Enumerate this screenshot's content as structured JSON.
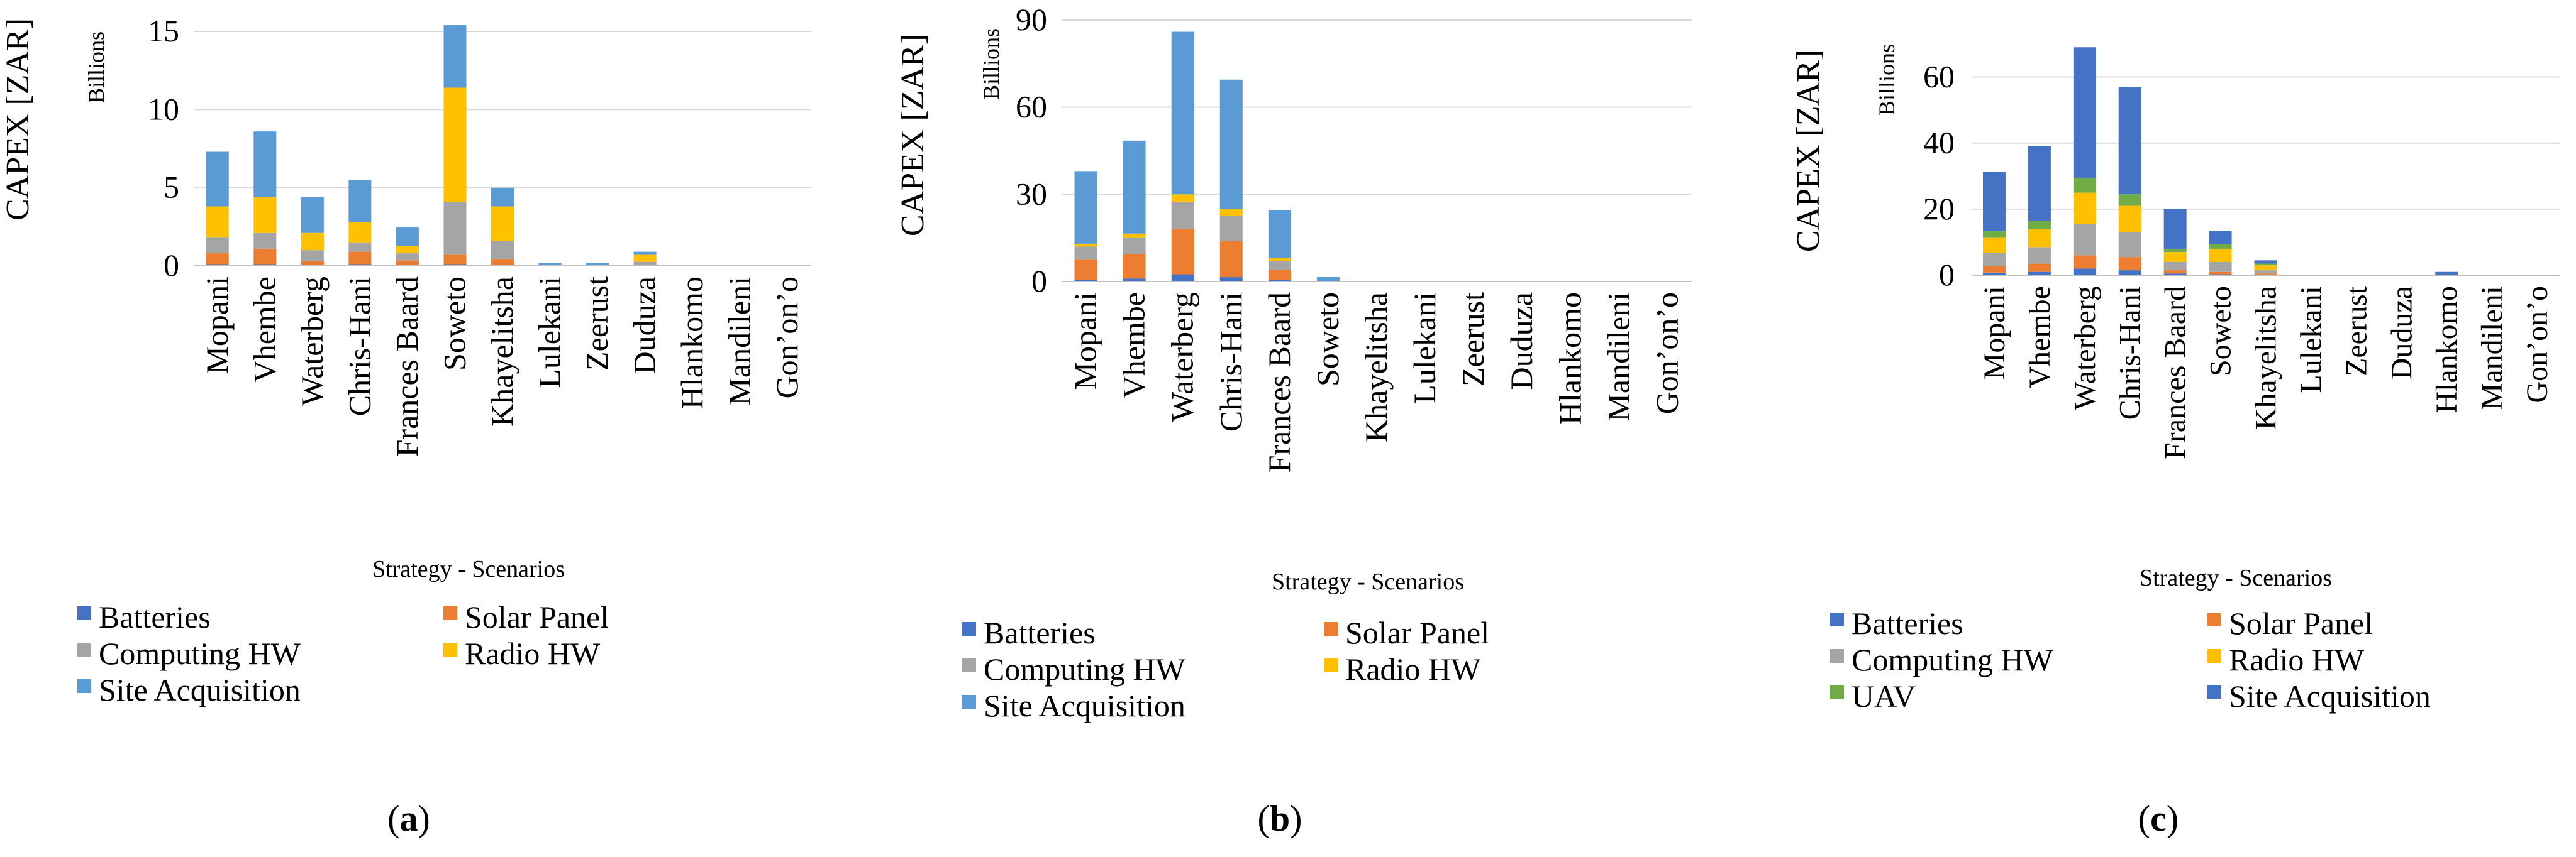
{
  "figure": {
    "panel_labels": [
      "(a)",
      "(b)",
      "(c)"
    ]
  },
  "chart_data": [
    {
      "type": "bar",
      "stacked": true,
      "panel": "(a)",
      "title": "",
      "xlabel": "Strategy - Scenarios",
      "ylabel": "CAPEX [ZAR]",
      "yunit": "Billions",
      "ylim": [
        0,
        15
      ],
      "yticks": [
        0,
        5,
        10,
        15
      ],
      "grid": true,
      "legend_position": "bottom",
      "categories": [
        "Mopani",
        "Vhembe",
        "Waterberg",
        "Chris-Hani",
        "Frances Baard",
        "Soweto",
        "Khayelitsha",
        "Lulekani",
        "Zeerust",
        "Duduza",
        "Hlankomo",
        "Mandileni",
        "Gon’on’o"
      ],
      "series": [
        {
          "name": "Batteries",
          "color": "#4472C4",
          "values": [
            0.1,
            0.1,
            0.05,
            0.1,
            0.05,
            0.1,
            0.05,
            0,
            0,
            0,
            0,
            0,
            0
          ]
        },
        {
          "name": "Solar Panel",
          "color": "#ED7D31",
          "values": [
            0.7,
            1.0,
            0.25,
            0.8,
            0.3,
            0.6,
            0.35,
            0,
            0,
            0.05,
            0,
            0,
            0
          ]
        },
        {
          "name": "Computing HW",
          "color": "#A5A5A5",
          "values": [
            1.0,
            1.0,
            0.7,
            0.6,
            0.45,
            3.4,
            1.2,
            0,
            0,
            0.2,
            0,
            0,
            0
          ]
        },
        {
          "name": "Radio HW",
          "color": "#FFC000",
          "values": [
            2.0,
            2.3,
            1.1,
            1.3,
            0.45,
            7.3,
            2.2,
            0,
            0,
            0.45,
            0,
            0,
            0
          ]
        },
        {
          "name": "Site Acquisition",
          "color": "#5B9BD5",
          "values": [
            3.5,
            4.2,
            2.3,
            2.7,
            1.2,
            4.0,
            1.2,
            0.2,
            0.2,
            0.2,
            0,
            0,
            0
          ]
        }
      ]
    },
    {
      "type": "bar",
      "stacked": true,
      "panel": "(b)",
      "title": "",
      "xlabel": "Strategy - Scenarios",
      "ylabel": "CAPEX [ZAR]",
      "yunit": "Billions",
      "ylim": [
        0,
        90
      ],
      "yticks": [
        0,
        30,
        60,
        90
      ],
      "grid": true,
      "legend_position": "bottom",
      "categories": [
        "Mopani",
        "Vhembe",
        "Waterberg",
        "Chris-Hani",
        "Frances Baard",
        "Soweto",
        "Khayelitsha",
        "Lulekani",
        "Zeerust",
        "Duduza",
        "Hlankomo",
        "Mandileni",
        "Gon’on’o"
      ],
      "series": [
        {
          "name": "Batteries",
          "color": "#4472C4",
          "values": [
            0.5,
            1.0,
            2.5,
            1.5,
            0.5,
            0,
            0,
            0,
            0,
            0,
            0,
            0,
            0
          ]
        },
        {
          "name": "Solar Panel",
          "color": "#ED7D31",
          "values": [
            7.0,
            8.5,
            15.5,
            12.5,
            3.5,
            0,
            0,
            0,
            0,
            0,
            0,
            0,
            0
          ]
        },
        {
          "name": "Computing HW",
          "color": "#A5A5A5",
          "values": [
            4.5,
            5.5,
            9.5,
            8.5,
            3.0,
            0,
            0,
            0,
            0,
            0,
            0,
            0,
            0
          ]
        },
        {
          "name": "Radio HW",
          "color": "#FFC000",
          "values": [
            1.0,
            1.5,
            2.5,
            2.5,
            1.0,
            0,
            0,
            0,
            0,
            0,
            0,
            0,
            0
          ]
        },
        {
          "name": "Site Acquisition",
          "color": "#5B9BD5",
          "values": [
            25.0,
            32.0,
            56.0,
            44.5,
            16.5,
            1.5,
            0,
            0,
            0,
            0,
            0,
            0,
            0
          ]
        }
      ]
    },
    {
      "type": "bar",
      "stacked": true,
      "panel": "(c)",
      "title": "",
      "xlabel": "Strategy - Scenarios",
      "ylabel": "CAPEX [ZAR]",
      "yunit": "Billions",
      "ylim": [
        0,
        70
      ],
      "yticks": [
        0,
        20,
        40,
        60
      ],
      "grid": true,
      "legend_position": "bottom",
      "categories": [
        "Mopani",
        "Vhembe",
        "Waterberg",
        "Chris-Hani",
        "Frances Baard",
        "Soweto",
        "Khayelitsha",
        "Lulekani",
        "Zeerust",
        "Duduza",
        "Hlankomo",
        "Mandileni",
        "Gon’on’o"
      ],
      "series": [
        {
          "name": "Batteries",
          "color": "#4472C4",
          "values": [
            0.8,
            1.0,
            2.0,
            1.5,
            0.5,
            0.3,
            0.2,
            0,
            0,
            0,
            0,
            0,
            0
          ]
        },
        {
          "name": "Solar Panel",
          "color": "#ED7D31",
          "values": [
            2.0,
            2.5,
            4.0,
            4.0,
            1.0,
            0.7,
            0.3,
            0,
            0,
            0,
            0,
            0,
            0
          ]
        },
        {
          "name": "Computing HW",
          "color": "#A5A5A5",
          "values": [
            4.0,
            5.0,
            9.5,
            7.5,
            2.5,
            3.0,
            1.0,
            0,
            0,
            0,
            0,
            0,
            0
          ]
        },
        {
          "name": "Radio HW",
          "color": "#FFC000",
          "values": [
            4.5,
            5.5,
            9.5,
            8.0,
            3.0,
            4.0,
            1.5,
            0,
            0,
            0,
            0,
            0,
            0
          ]
        },
        {
          "name": "UAV",
          "color": "#70AD47",
          "values": [
            2.0,
            2.5,
            4.5,
            3.5,
            1.0,
            1.5,
            0.5,
            0,
            0,
            0,
            0,
            0,
            0
          ]
        },
        {
          "name": "Site Acquisition",
          "color": "#4472C4",
          "values": [
            18.0,
            22.5,
            39.5,
            32.5,
            12.0,
            4.0,
            1.0,
            0,
            0,
            0,
            1.0,
            0,
            0
          ]
        }
      ]
    }
  ]
}
